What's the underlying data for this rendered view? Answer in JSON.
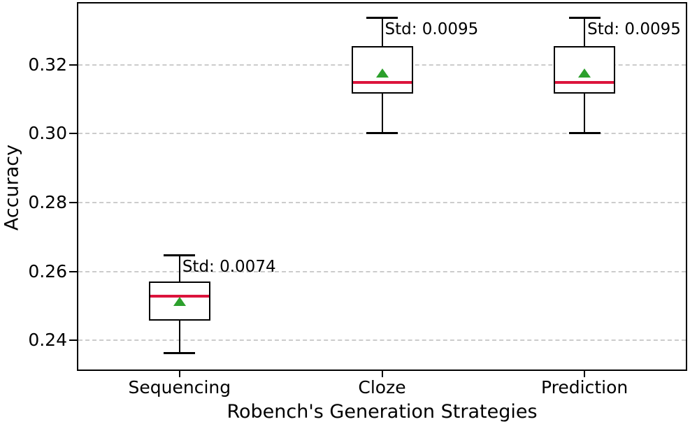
{
  "chart_data": {
    "type": "boxplot",
    "title": "",
    "xlabel": "Robench's Generation Strategies",
    "ylabel": "Accuracy",
    "categories": [
      "Sequencing",
      "Cloze",
      "Prediction"
    ],
    "ylim": [
      0.2315,
      0.3378
    ],
    "yticks": [
      0.24,
      0.26,
      0.28,
      0.3,
      0.32
    ],
    "ytick_labels": [
      "0.24",
      "0.26",
      "0.28",
      "0.30",
      "0.32"
    ],
    "grid": "horizontal-dashed",
    "legend": "none",
    "series": [
      {
        "name": "Sequencing",
        "whisker_low": 0.2363,
        "q1": 0.2456,
        "median": 0.2528,
        "mean": 0.2513,
        "q3": 0.257,
        "whisker_high": 0.2648,
        "std": 0.0074,
        "std_label": "Std: 0.0074"
      },
      {
        "name": "Cloze",
        "whisker_low": 0.3002,
        "q1": 0.3116,
        "median": 0.3148,
        "mean": 0.3178,
        "q3": 0.3255,
        "whisker_high": 0.3337,
        "std": 0.0095,
        "std_label": "Std: 0.0095"
      },
      {
        "name": "Prediction",
        "whisker_low": 0.3002,
        "q1": 0.3116,
        "median": 0.3148,
        "mean": 0.3178,
        "q3": 0.3254,
        "whisker_high": 0.3337,
        "std": 0.0095,
        "std_label": "Std: 0.0095"
      }
    ],
    "colors": {
      "median": "#dc143c",
      "mean_marker": "#2ca02c",
      "box_edge": "#000000",
      "box_fill": "#ffffff",
      "grid": "#cccccc",
      "text": "#000000"
    }
  }
}
